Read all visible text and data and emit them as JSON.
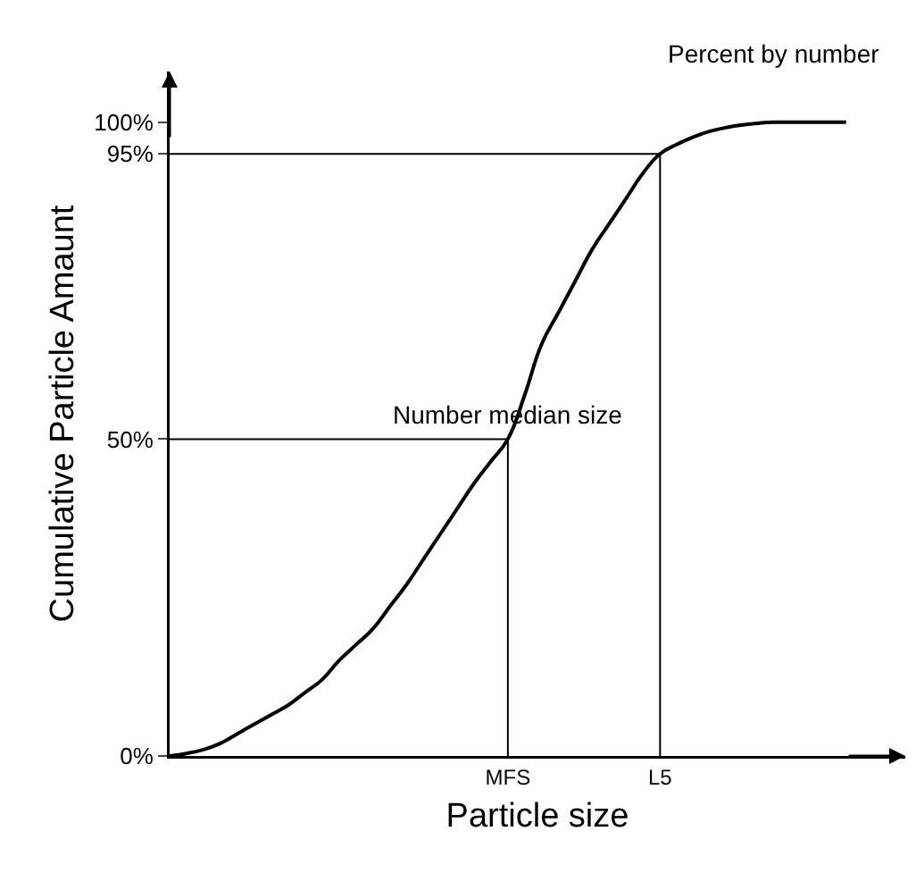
{
  "chart_data": {
    "type": "line",
    "xlabel": "Particle size",
    "ylabel": "Cumulative Particle Amaunt",
    "categories": [
      null,
      null,
      null,
      null,
      null,
      null,
      null,
      null,
      null,
      null,
      null,
      null,
      null,
      null,
      null,
      null,
      null,
      null,
      null,
      null,
      "MFS",
      null,
      null,
      null,
      null,
      null,
      null,
      null,
      null,
      "L5",
      null,
      null,
      null,
      null,
      null,
      null,
      null,
      null,
      null,
      null,
      null
    ],
    "series": [
      {
        "color": "#000000",
        "values": [
          0,
          0.4,
          1,
          2,
          3.5,
          5,
          6.5,
          8,
          10,
          12,
          15,
          17.5,
          20,
          23.5,
          27,
          31,
          35,
          39,
          43,
          46.5,
          50,
          57,
          65,
          70,
          75,
          80,
          84,
          88,
          92,
          95,
          96.5,
          97.7,
          98.6,
          99.2,
          99.6,
          99.9,
          100,
          100,
          100,
          100,
          100
        ]
      }
    ],
    "ylim": [
      0,
      108
    ],
    "yticks": [
      {
        "value": 0,
        "label": "0%"
      },
      {
        "value": 50,
        "label": "50%"
      },
      {
        "value": 95,
        "label": "95%"
      },
      {
        "value": 100,
        "label": "100%"
      }
    ],
    "ref_lines": [
      {
        "axis": "y",
        "value": 50
      },
      {
        "axis": "y",
        "value": 95
      },
      {
        "axis": "x",
        "value": "MFS"
      },
      {
        "axis": "x",
        "value": "L5"
      }
    ],
    "annotations": [
      {
        "text": "Number median size",
        "x": "MFS",
        "y": 50
      },
      "Percent by number"
    ],
    "grid": false,
    "marker": "none",
    "line_style": "solid"
  }
}
